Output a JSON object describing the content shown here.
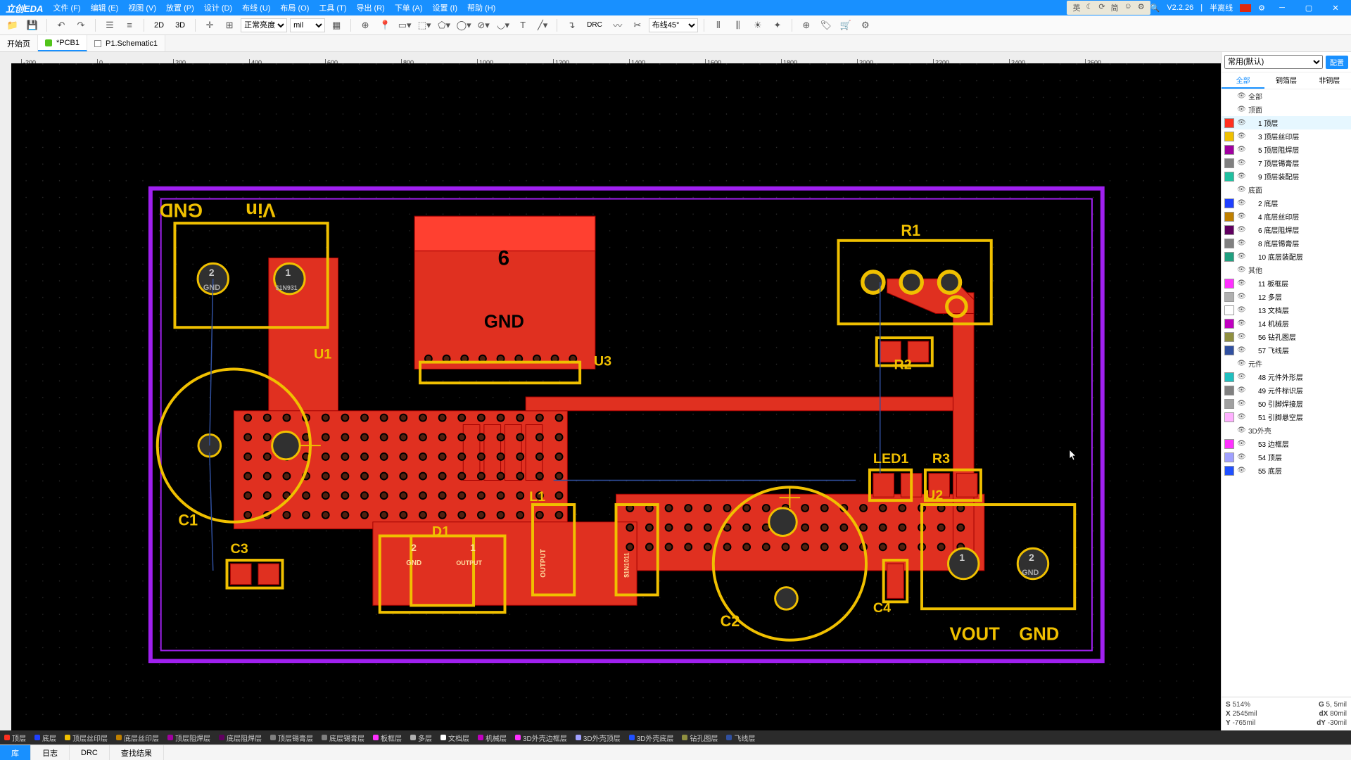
{
  "app": {
    "logo": "立创EDA"
  },
  "menu": [
    "文件 (F)",
    "编辑 (E)",
    "视图 (V)",
    "放置 (P)",
    "设计 (D)",
    "布线 (U)",
    "布局 (O)",
    "工具 (T)",
    "导出 (R)",
    "下单 (A)",
    "设置 (I)",
    "帮助 (H)"
  ],
  "titlebar_right": {
    "version": "V2.2.26",
    "mode": "半离线"
  },
  "status_icons": [
    "英",
    "☾",
    "⟳",
    "简",
    "☺",
    "⚙"
  ],
  "toolbar": {
    "view2d": "2D",
    "view3d": "3D",
    "brightness_sel": "正常亮度",
    "unit_sel": "mil",
    "drc": "DRC",
    "angle_sel": "布线45°"
  },
  "tabs": [
    {
      "label": "开始页",
      "icon": "none",
      "active": false
    },
    {
      "label": "*PCB1",
      "icon": "green",
      "active": true
    },
    {
      "label": "P1.Schematic1",
      "icon": "doc",
      "active": false
    }
  ],
  "ruler_ticks": [
    -200,
    0,
    200,
    400,
    600,
    800,
    1000,
    1200,
    1400,
    1600,
    1800,
    2000,
    2200,
    2400,
    2600
  ],
  "canvas": {
    "board_outline_color": "#a020f0",
    "copper_color": "#e03020",
    "silk_color": "#f0c000",
    "pad_fill": "#303030",
    "via_color": "#606060",
    "ratsnest_color": "#3050a0",
    "bg": "#000000",
    "labels": {
      "GND_flip": "GND",
      "Vin_flip": "Vin",
      "U1": "U1",
      "U3": "U3",
      "R1": "R1",
      "R2": "R2",
      "R3": "R3",
      "C1": "C1",
      "C2": "C2",
      "C3": "C3",
      "C4": "C4",
      "L1": "L1",
      "D1": "D1",
      "LED1": "LED1",
      "U2": "U2",
      "VOUT": "VOUT",
      "GND": "GND",
      "pad1": "1",
      "pad2": "2",
      "net_gnd": "GND",
      "net_out": "OUTPUT",
      "net_sin": "$1N931",
      "net_sin2": "$1N1011",
      "big6": "6"
    }
  },
  "right": {
    "preset": "常用(默认)",
    "config_btn": "配置",
    "tabs": [
      "全部",
      "铜箔层",
      "非铜层"
    ],
    "active_tab": 0,
    "layers": [
      {
        "type": "group",
        "name": "全部",
        "vis": true
      },
      {
        "type": "group",
        "name": "顶面",
        "vis": true
      },
      {
        "type": "layer",
        "name": "1 顶层",
        "color": "#ff3020",
        "vis": true,
        "active": true
      },
      {
        "type": "layer",
        "name": "3 顶层丝印层",
        "color": "#f0c000",
        "vis": true
      },
      {
        "type": "layer",
        "name": "5 顶层阻焊层",
        "color": "#a000a0",
        "vis": true
      },
      {
        "type": "layer",
        "name": "7 顶层锡膏层",
        "color": "#808080",
        "vis": true
      },
      {
        "type": "layer",
        "name": "9 顶层装配层",
        "color": "#20c0a0",
        "vis": true
      },
      {
        "type": "group",
        "name": "底面",
        "vis": true
      },
      {
        "type": "layer",
        "name": "2 底层",
        "color": "#2040ff",
        "vis": true
      },
      {
        "type": "layer",
        "name": "4 底层丝印层",
        "color": "#c08000",
        "vis": true
      },
      {
        "type": "layer",
        "name": "6 底层阻焊层",
        "color": "#600060",
        "vis": true
      },
      {
        "type": "layer",
        "name": "8 底层锡膏层",
        "color": "#808080",
        "vis": true
      },
      {
        "type": "layer",
        "name": "10 底层装配层",
        "color": "#20a080",
        "vis": true
      },
      {
        "type": "group",
        "name": "其他",
        "vis": true
      },
      {
        "type": "layer",
        "name": "11 板框层",
        "color": "#ff30ff",
        "vis": true
      },
      {
        "type": "layer",
        "name": "12 多层",
        "color": "#b0b0b0",
        "vis": true
      },
      {
        "type": "layer",
        "name": "13 文档层",
        "color": "#ffffff",
        "vis": true
      },
      {
        "type": "layer",
        "name": "14 机械层",
        "color": "#c000c0",
        "vis": true
      },
      {
        "type": "layer",
        "name": "56 钻孔图层",
        "color": "#909040",
        "vis": true
      },
      {
        "type": "layer",
        "name": "57 飞线层",
        "color": "#3050a0",
        "vis": true
      },
      {
        "type": "group",
        "name": "元件",
        "vis": true
      },
      {
        "type": "layer",
        "name": "48 元件外形层",
        "color": "#20c0c0",
        "vis": true
      },
      {
        "type": "layer",
        "name": "49 元件标识层",
        "color": "#808080",
        "vis": true
      },
      {
        "type": "layer",
        "name": "50 引脚焊接层",
        "color": "#a0a0a0",
        "vis": true
      },
      {
        "type": "layer",
        "name": "51 引脚悬空层",
        "color": "#ffb0ff",
        "vis": true
      },
      {
        "type": "group",
        "name": "3D外壳",
        "vis": true
      },
      {
        "type": "layer",
        "name": "53 边框层",
        "color": "#ff30ff",
        "vis": true
      },
      {
        "type": "layer",
        "name": "54 顶层",
        "color": "#a0a0ff",
        "vis": true
      },
      {
        "type": "layer",
        "name": "55 底层",
        "color": "#2050ff",
        "vis": true
      }
    ]
  },
  "coords": {
    "s_label": "S",
    "s_val": "514%",
    "g_label": "G",
    "g_val": "5, 5mil",
    "x_label": "X",
    "x_val": "2545mil",
    "dx_label": "dX",
    "dx_val": "80mil",
    "y_label": "Y",
    "y_val": "-765mil",
    "dy_label": "dY",
    "dy_val": "-30mil"
  },
  "layer_status": [
    {
      "name": "顶层",
      "color": "#ff3020"
    },
    {
      "name": "底层",
      "color": "#2040ff"
    },
    {
      "name": "顶层丝印层",
      "color": "#f0c000"
    },
    {
      "name": "底层丝印层",
      "color": "#c08000"
    },
    {
      "name": "顶层阻焊层",
      "color": "#a000a0"
    },
    {
      "name": "底层阻焊层",
      "color": "#600060"
    },
    {
      "name": "顶层锡膏层",
      "color": "#808080"
    },
    {
      "name": "底层锡膏层",
      "color": "#808080"
    },
    {
      "name": "板框层",
      "color": "#ff30ff"
    },
    {
      "name": "多层",
      "color": "#b0b0b0"
    },
    {
      "name": "文档层",
      "color": "#ffffff"
    },
    {
      "name": "机械层",
      "color": "#c000c0"
    },
    {
      "name": "3D外壳边框层",
      "color": "#ff30ff"
    },
    {
      "name": "3D外壳顶层",
      "color": "#a0a0ff"
    },
    {
      "name": "3D外壳底层",
      "color": "#2050ff"
    },
    {
      "name": "钻孔图层",
      "color": "#909040"
    },
    {
      "name": "飞线层",
      "color": "#3050a0"
    }
  ],
  "footer": {
    "lib": "库",
    "log": "日志",
    "drc": "DRC",
    "find": "查找结果"
  }
}
